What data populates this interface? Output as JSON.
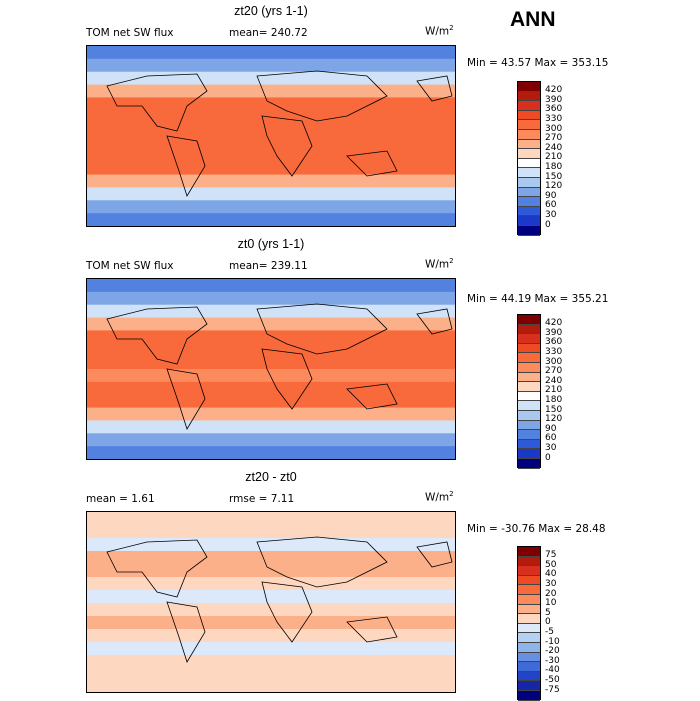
{
  "season": "ANN",
  "panels": [
    {
      "title": "zt20 (yrs 1-1)",
      "var_label": "TOM net SW flux",
      "stat_text": "mean=  240.72",
      "units": "W/m",
      "units_sup": "2",
      "minmax": "Min =  43.57 Max = 353.15",
      "colorbar": {
        "labels": [
          "420",
          "390",
          "360",
          "330",
          "300",
          "270",
          "240",
          "210",
          "180",
          "150",
          "120",
          "90",
          "60",
          "30",
          "0"
        ],
        "colors": [
          "#7f0000",
          "#b31b0c",
          "#d7301f",
          "#ef4a24",
          "#f8693b",
          "#fb8a5c",
          "#fcb08a",
          "#fdd7c0",
          "#ffffff",
          "#cfe2f7",
          "#a9c8ef",
          "#7ea6e6",
          "#5281df",
          "#2e5ad8",
          "#1b39c8",
          "#00007f"
        ]
      }
    },
    {
      "title": "zt0 (yrs 1-1)",
      "var_label": "TOM net SW flux",
      "stat_text": "mean=  239.11",
      "units": "W/m",
      "units_sup": "2",
      "minmax": "Min =  44.19 Max = 355.21",
      "colorbar": {
        "labels": [
          "420",
          "390",
          "360",
          "330",
          "300",
          "270",
          "240",
          "210",
          "180",
          "150",
          "120",
          "90",
          "60",
          "30",
          "0"
        ],
        "colors": [
          "#7f0000",
          "#b31b0c",
          "#d7301f",
          "#ef4a24",
          "#f8693b",
          "#fb8a5c",
          "#fcb08a",
          "#fdd7c0",
          "#ffffff",
          "#cfe2f7",
          "#a9c8ef",
          "#7ea6e6",
          "#5281df",
          "#2e5ad8",
          "#1b39c8",
          "#00007f"
        ]
      }
    },
    {
      "title": "zt20 - zt0",
      "var_label": "mean =    1.61",
      "stat_text": "rmse =   7.11",
      "units": "W/m",
      "units_sup": "2",
      "minmax": "Min = -30.76 Max =  28.48",
      "colorbar": {
        "labels": [
          "75",
          "50",
          "40",
          "30",
          "20",
          "10",
          "5",
          "0",
          "-5",
          "-10",
          "-20",
          "-30",
          "-40",
          "-50",
          "-75"
        ],
        "colors": [
          "#7f0000",
          "#b31b0c",
          "#d7301f",
          "#ef4a24",
          "#f8693b",
          "#fb8a5c",
          "#fcb08a",
          "#fdd7c0",
          "#dbe9fa",
          "#b5d0f2",
          "#8fb4ea",
          "#6790e2",
          "#3f6bd9",
          "#2244c6",
          "#1626a6",
          "#00007f"
        ]
      }
    }
  ],
  "chart_data": [
    {
      "type": "heatmap",
      "title": "zt20 (yrs 1-1)",
      "variable": "TOM net SW flux",
      "units": "W/m2",
      "mean": 240.72,
      "min": 43.57,
      "max": 353.15,
      "levels": [
        0,
        30,
        60,
        90,
        120,
        150,
        180,
        210,
        240,
        270,
        300,
        330,
        360,
        390,
        420
      ],
      "lat_band_values": [
        60,
        100,
        160,
        240,
        300,
        320,
        310,
        300,
        310,
        300,
        240,
        160,
        100,
        60
      ],
      "description_region": "global lat-lon map"
    },
    {
      "type": "heatmap",
      "title": "zt0 (yrs 1-1)",
      "variable": "TOM net SW flux",
      "units": "W/m2",
      "mean": 239.11,
      "min": 44.19,
      "max": 355.21,
      "levels": [
        0,
        30,
        60,
        90,
        120,
        150,
        180,
        210,
        240,
        270,
        300,
        330,
        360,
        390,
        420
      ],
      "lat_band_values": [
        60,
        100,
        160,
        240,
        300,
        315,
        310,
        295,
        310,
        300,
        240,
        160,
        100,
        60
      ]
    },
    {
      "type": "heatmap",
      "title": "zt20 - zt0",
      "units": "W/m2",
      "mean": 1.61,
      "rmse": 7.11,
      "min": -30.76,
      "max": 28.48,
      "levels": [
        -75,
        -50,
        -40,
        -30,
        -20,
        -10,
        -5,
        0,
        5,
        10,
        20,
        30,
        40,
        50,
        75
      ],
      "lat_band_values": [
        0,
        3,
        -2,
        5,
        8,
        2,
        -5,
        4,
        6,
        3,
        -3,
        2,
        1,
        0
      ]
    }
  ]
}
